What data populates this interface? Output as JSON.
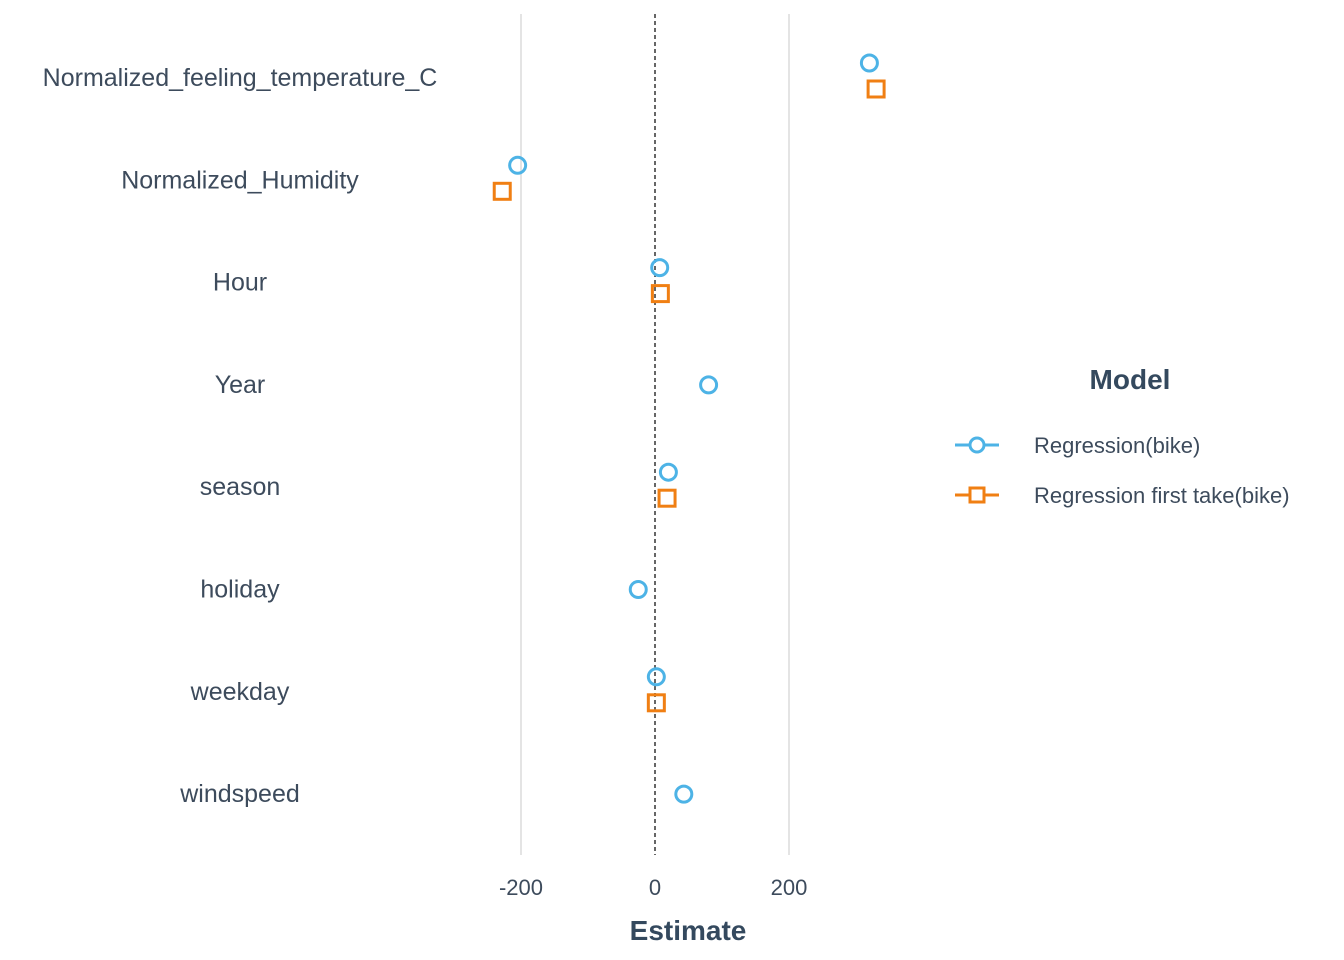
{
  "chart_data": {
    "type": "scatter",
    "title": "",
    "xlabel": "Estimate",
    "ylabel": "",
    "xlim": [
      -350,
      400
    ],
    "x_ticks": [
      -200,
      0,
      200
    ],
    "x_tick_labels": [
      "-200",
      "0",
      "200"
    ],
    "reference_line_x": 0,
    "grid": "major vertical",
    "categories": [
      "Normalized_feeling_temperature_C",
      "Normalized_Humidity",
      "Hour",
      "Year",
      "season",
      "holiday",
      "weekday",
      "windspeed"
    ],
    "series": [
      {
        "name": "Regression(bike)",
        "color": "#4db3e6",
        "marker": "circle",
        "values": [
          320,
          -205,
          7,
          80,
          20,
          -25,
          2,
          43
        ]
      },
      {
        "name": "Regression first take(bike)",
        "color": "#f07f13",
        "marker": "square",
        "values": [
          330,
          -228,
          8,
          null,
          18,
          null,
          2,
          null
        ]
      }
    ],
    "legend": {
      "title": "Model",
      "placement": "right"
    }
  }
}
